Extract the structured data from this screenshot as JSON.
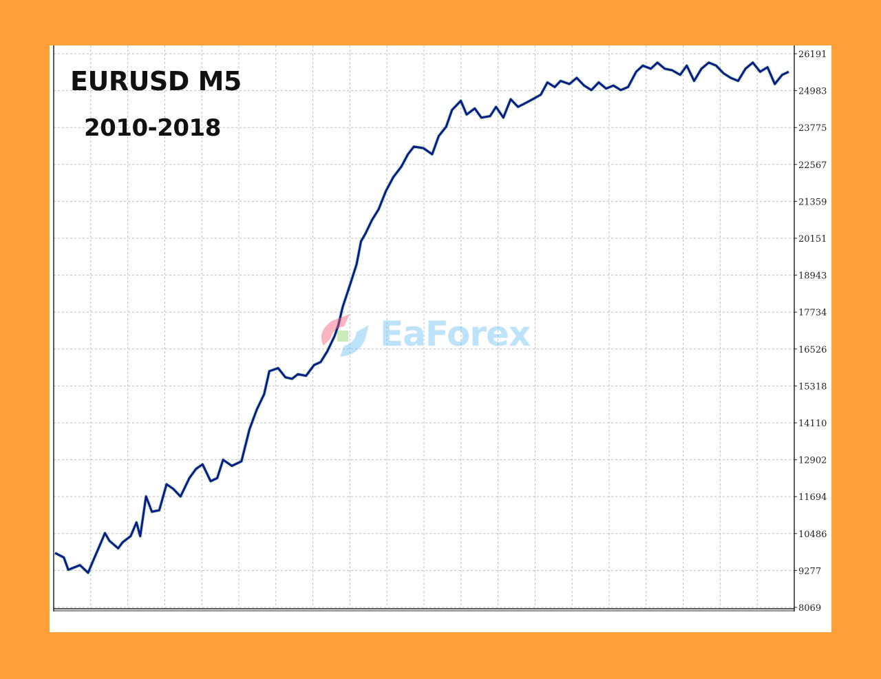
{
  "colors": {
    "frame": "#FF9F3A",
    "panel": "#FFFFFF",
    "grid": "#BDBDBD",
    "line": "#0A1A8C",
    "highlight": "#22A020",
    "axis": "#222222",
    "watermark": "#6FC3F7"
  },
  "watermark": {
    "text": "EaForex",
    "icon": "eaforex-logo-icon"
  },
  "chart_data": {
    "type": "line",
    "title": "EURUSD M5",
    "subtitle": "2010-2018",
    "xlabel": "",
    "ylabel": "",
    "y_axis_position": "right",
    "ylim": [
      8069,
      26191
    ],
    "y_ticks": [
      26191,
      24983,
      23775,
      22567,
      21359,
      20151,
      18943,
      17734,
      16526,
      15318,
      14110,
      12902,
      11694,
      10486,
      9277,
      8069
    ],
    "y_tick_labels": [
      "26191",
      "24983",
      "23775",
      "22567",
      "21359",
      "20151",
      "18943",
      "17734",
      "16526",
      "15318",
      "14110",
      "12902",
      "11694",
      "10486",
      "9277",
      "8069"
    ],
    "grid": true,
    "xlim": [
      0,
      100
    ],
    "series": [
      {
        "x": [
          0,
          1.2,
          1.8,
          3.4,
          4.5,
          5.2,
          6.1,
          6.8,
          7.4,
          8.6,
          9.2,
          10.3,
          11.1,
          11.6,
          12.4,
          13.2,
          14.2,
          15.2,
          16.1,
          17.1,
          18.3,
          19.2,
          20.1,
          21.2,
          22.1,
          22.9,
          24.1,
          25.4,
          26.5,
          27.5,
          28.5,
          29.2,
          30.4,
          31.4,
          32.3,
          33.1,
          34.2,
          35.3,
          36.2,
          37.1,
          38.1,
          38.6,
          39.2,
          40.3,
          41.1,
          41.7,
          42.3,
          43.2,
          44.1,
          45.1,
          46.1,
          47.2,
          48.1,
          48.9,
          50.2,
          51.4,
          52.3,
          53.3,
          54.1,
          55.3,
          56.1,
          57.2,
          58.1,
          59.3,
          60.1,
          61.1,
          62.1,
          63.1,
          63.9,
          65.1,
          66.2,
          67.1,
          68.1,
          68.9,
          70.1,
          71.1,
          72.1,
          73.1,
          74.1,
          75.1,
          76.1,
          77.1,
          78.1,
          79.2,
          80.1,
          81.2,
          82.1,
          83.1,
          84.1,
          85.2,
          86.1,
          87.1,
          88.1,
          89.1,
          90.1,
          91.1,
          92.1,
          93.1,
          94.1,
          95.1,
          96.1,
          97.1,
          98.1,
          99.1,
          100
        ],
        "y": [
          9850,
          9700,
          9300,
          9450,
          9200,
          9600,
          10100,
          10500,
          10250,
          10000,
          10200,
          10400,
          10850,
          10400,
          11700,
          11200,
          11250,
          12100,
          11950,
          11700,
          12300,
          12600,
          12750,
          12200,
          12300,
          12900,
          12700,
          12850,
          13900,
          14550,
          15050,
          15800,
          15900,
          15600,
          15550,
          15700,
          15650,
          16000,
          16100,
          16450,
          16950,
          17300,
          17900,
          18700,
          19300,
          20050,
          20300,
          20750,
          21100,
          21700,
          22150,
          22500,
          22900,
          23150,
          23100,
          22900,
          23500,
          23800,
          24350,
          24650,
          24200,
          24400,
          24100,
          24150,
          24450,
          24100,
          24700,
          24450,
          24550,
          24700,
          24850,
          25250,
          25100,
          25300,
          25200,
          25400,
          25150,
          25000,
          25250,
          25050,
          25150,
          25000,
          25100,
          25600,
          25800,
          25700,
          25900,
          25700,
          25650,
          25500,
          25800,
          25300,
          25700,
          25900,
          25800,
          25550,
          25400,
          25300,
          25700,
          25900,
          25600,
          25750,
          25200,
          25500,
          25600
        ]
      }
    ]
  }
}
